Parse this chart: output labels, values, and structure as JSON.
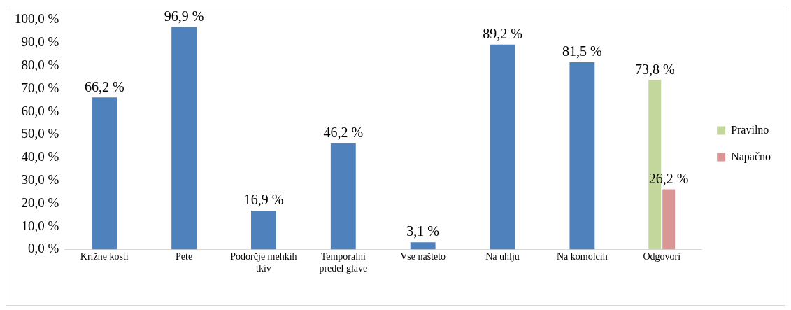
{
  "chart_data": {
    "type": "bar",
    "categories": [
      "Križne kosti",
      "Pete",
      "Podorčje mehkih tkiv",
      "Temporalni predel glave",
      "Vse našteto",
      "Na uhlju",
      "Na komolcih",
      "Odgovori"
    ],
    "series": [
      {
        "color": "#4f81bd",
        "values": [
          66.2,
          96.9,
          16.9,
          46.2,
          3.1,
          89.2,
          81.5,
          null
        ]
      },
      {
        "name": "Pravilno",
        "color": "#c3d69b",
        "values": [
          null,
          null,
          null,
          null,
          null,
          null,
          null,
          73.8
        ]
      },
      {
        "name": "Napačno",
        "color": "#d99694",
        "values": [
          null,
          null,
          null,
          null,
          null,
          null,
          null,
          26.2
        ]
      }
    ],
    "ylim": [
      0,
      100
    ],
    "yticks": [
      {
        "value": 0,
        "label": "0,0 %"
      },
      {
        "value": 10,
        "label": "10,0 %"
      },
      {
        "value": 20,
        "label": "20,0 %"
      },
      {
        "value": 30,
        "label": "30,0 %"
      },
      {
        "value": 40,
        "label": "40,0 %"
      },
      {
        "value": 50,
        "label": "50,0 %"
      },
      {
        "value": 60,
        "label": "60,0 %"
      },
      {
        "value": 70,
        "label": "70,0 %"
      },
      {
        "value": 80,
        "label": "80,0 %"
      },
      {
        "value": 90,
        "label": "90,0 %"
      },
      {
        "value": 100,
        "label": "100,0 %"
      }
    ],
    "value_labels": [
      [
        "66,2 %",
        "96,9 %",
        "16,9 %",
        "46,2 %",
        "3,1 %",
        "89,2 %",
        "81,5 %",
        null
      ],
      [
        null,
        null,
        null,
        null,
        null,
        null,
        null,
        "73,8 %"
      ],
      [
        null,
        null,
        null,
        null,
        null,
        null,
        null,
        "26,2 %"
      ]
    ],
    "grid": false,
    "legend": "right"
  }
}
